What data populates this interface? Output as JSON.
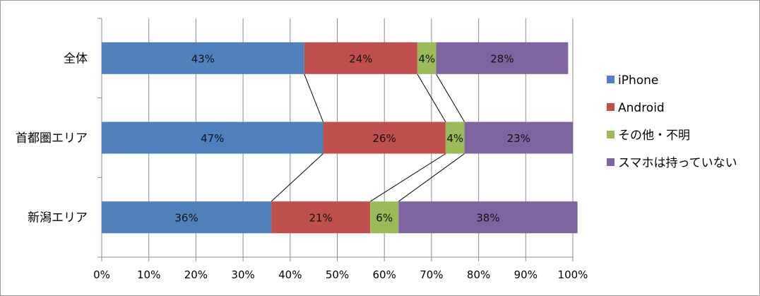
{
  "chart_data": {
    "type": "bar",
    "orientation": "horizontal",
    "stacked": "percent",
    "categories": [
      "全体",
      "首都圏エリア",
      "新潟エリア"
    ],
    "series": [
      {
        "name": "iPhone",
        "values": [
          43,
          47,
          36
        ],
        "labels": [
          "43%",
          "47%",
          "36%"
        ],
        "color": "#4f81bd"
      },
      {
        "name": "Android",
        "values": [
          24,
          26,
          21
        ],
        "labels": [
          "24%",
          "26%",
          "21%"
        ],
        "color": "#c0504d"
      },
      {
        "name": "その他・不明",
        "values": [
          4,
          4,
          6
        ],
        "labels": [
          "4%",
          "4%",
          "6%"
        ],
        "color": "#9bbb59"
      },
      {
        "name": "スマホは持っていない",
        "values": [
          28,
          23,
          38
        ],
        "labels": [
          "28%",
          "23%",
          "38%"
        ],
        "color": "#8064a2"
      }
    ],
    "xlim": [
      0,
      100
    ],
    "x_ticks": [
      0,
      10,
      20,
      30,
      40,
      50,
      60,
      70,
      80,
      90,
      100
    ],
    "x_tick_labels": [
      "0%",
      "10%",
      "20%",
      "30%",
      "40%",
      "50%",
      "60%",
      "70%",
      "80%",
      "90%",
      "100%"
    ],
    "grid": true,
    "series_lines": true,
    "legend_position": "right"
  }
}
